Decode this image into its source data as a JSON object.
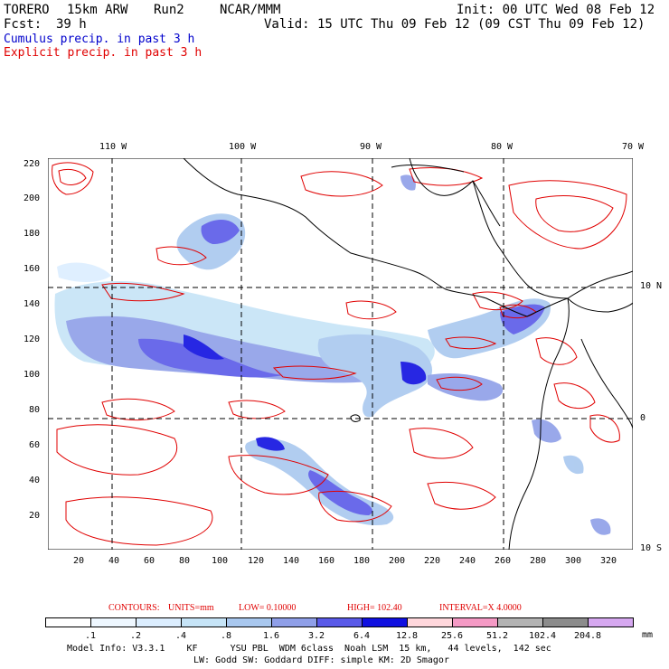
{
  "header": {
    "model": "TORERO",
    "resolution": "15km ARW",
    "run": "Run2",
    "org": "NCAR/MMM",
    "init": "Init: 00 UTC Wed 08 Feb 12",
    "fcst_label": "Fcst:",
    "fcst_hours": "39 h",
    "valid": "Valid: 15 UTC Thu 09 Feb 12 (09 CST Thu 09 Feb 12)"
  },
  "legend_lines": {
    "cumulus": "Cumulus precip. in past 3 h",
    "explicit": "Explicit precip. in past 3 h"
  },
  "axes": {
    "top": [
      "110 W",
      "100 W",
      "90 W",
      "80 W",
      "70 W"
    ],
    "left": [
      "220",
      "200",
      "180",
      "160",
      "140",
      "120",
      "100",
      "80",
      "60",
      "40",
      "20"
    ],
    "bottom": [
      "20",
      "40",
      "60",
      "80",
      "100",
      "120",
      "140",
      "160",
      "180",
      "200",
      "220",
      "240",
      "260",
      "280",
      "300",
      "320"
    ],
    "right": [
      "10 N",
      "0",
      "10 S"
    ]
  },
  "contours_line": {
    "label": "CONTOURS:",
    "units": "UNITS=mm",
    "low": "LOW= 0.10000",
    "high": "HIGH= 102.40",
    "interval": "INTERVAL=X 4.0000"
  },
  "colorbar": {
    "labels": [
      ".1",
      ".2",
      ".4",
      ".8",
      "1.6",
      "3.2",
      "6.4",
      "12.8",
      "25.6",
      "51.2",
      "102.4",
      "204.8"
    ],
    "units": "mm",
    "colors": [
      "#ffffff",
      "#eef7ff",
      "#dceeff",
      "#c6e4f7",
      "#a9c8ef",
      "#8f9fe8",
      "#5a5ae8",
      "#1010e0",
      "#ffd7dc",
      "#f59ac5",
      "#b3b3b3",
      "#8c8c8c",
      "#d6a8f0"
    ]
  },
  "footer": {
    "line1": "Model Info: V3.3.1    KF      YSU PBL  WDM 6class  Noah LSM  15 km,   44 levels,  142 sec",
    "line2": "LW: Godd SW: Goddard DIFF: simple KM: 2D Smagor"
  }
}
